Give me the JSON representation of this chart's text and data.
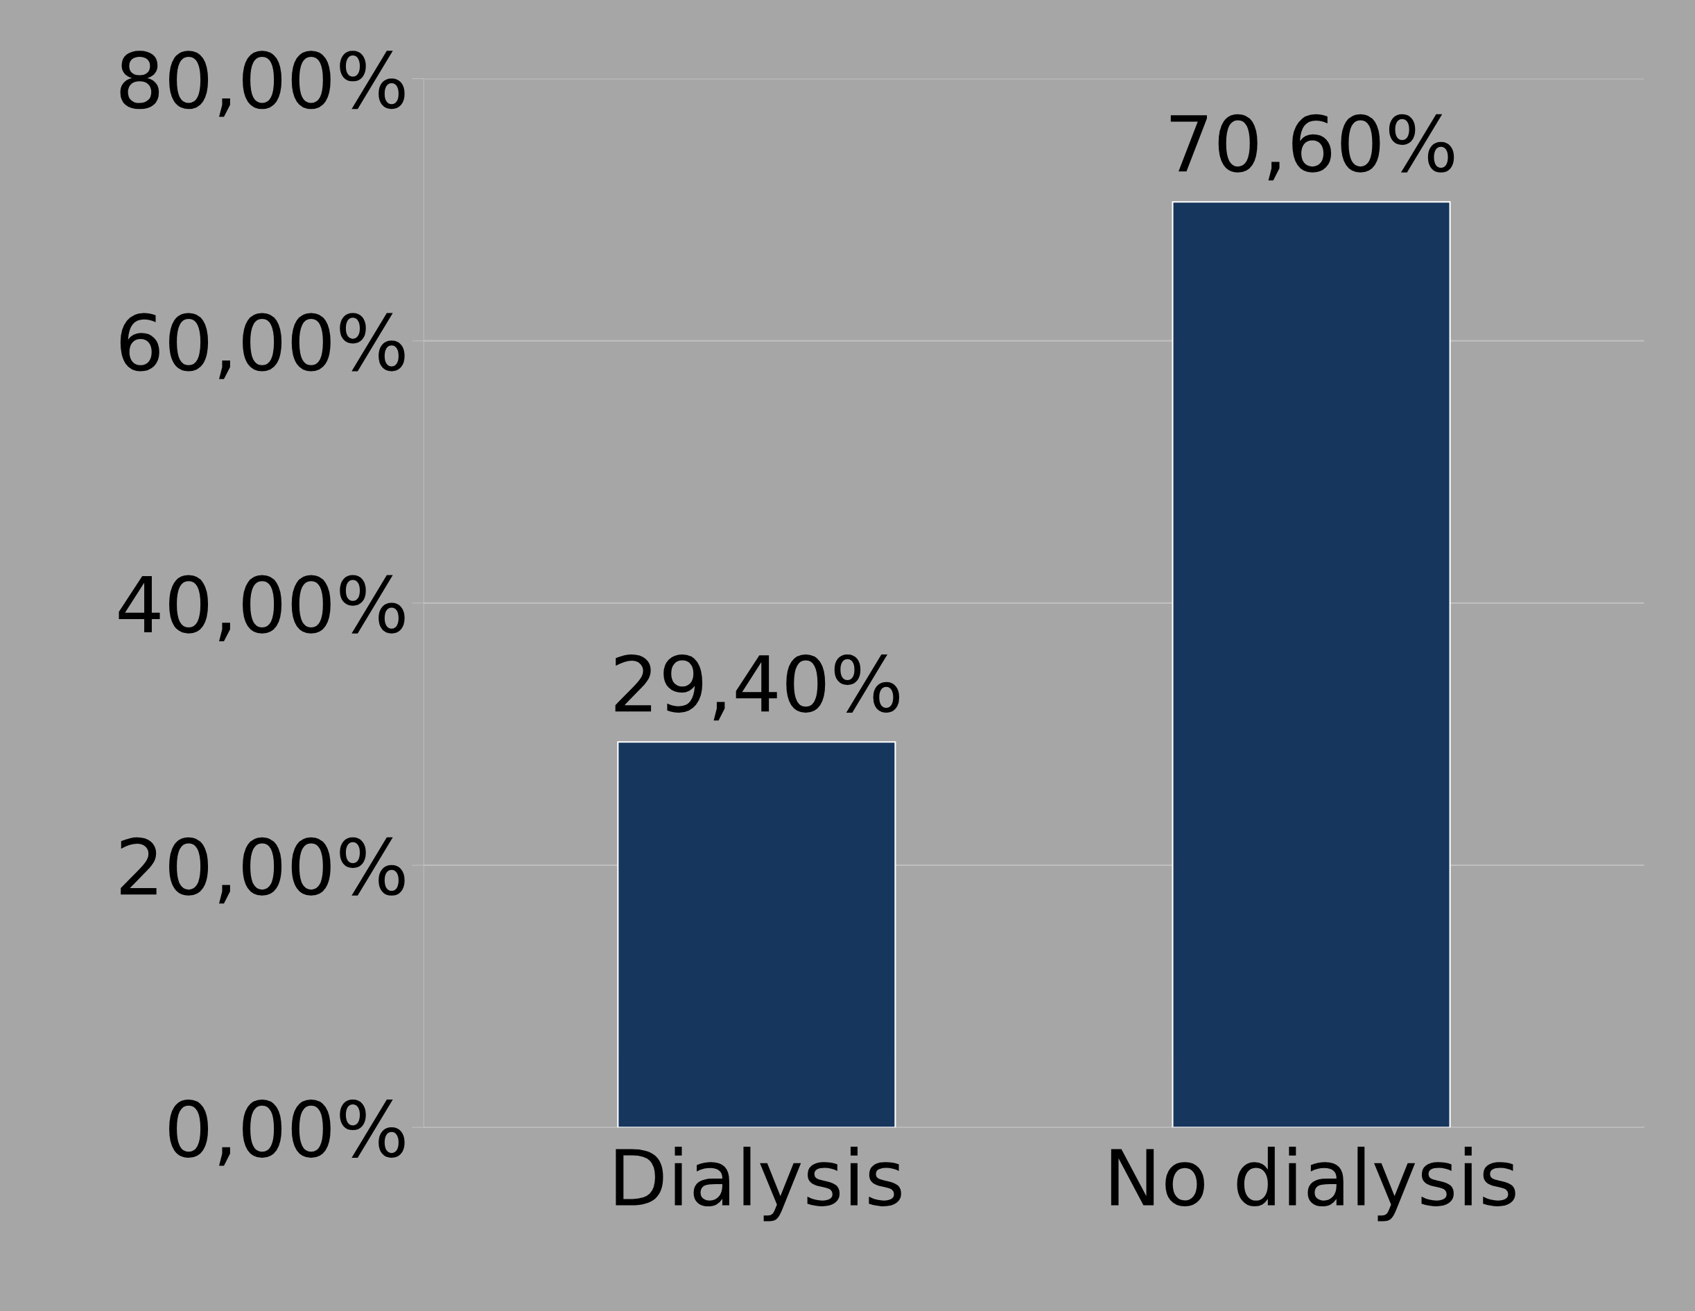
{
  "chart_data": {
    "type": "bar",
    "categories": [
      "Dialysis",
      "No dialysis"
    ],
    "values": [
      29.4,
      70.6
    ],
    "value_labels": [
      "29,40%",
      "70,60%"
    ],
    "color": "#17365d",
    "ylim": [
      0,
      80
    ],
    "yticks": [
      {
        "value": 0,
        "label": "0,00%"
      },
      {
        "value": 20,
        "label": "20,00%"
      },
      {
        "value": 40,
        "label": "40,00%"
      },
      {
        "value": 60,
        "label": "60,00%"
      },
      {
        "value": 80,
        "label": "80,00%"
      }
    ],
    "grid": "y"
  }
}
